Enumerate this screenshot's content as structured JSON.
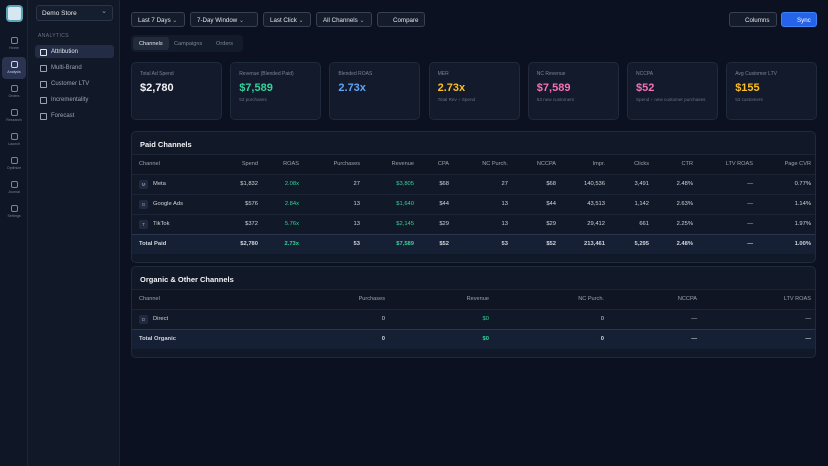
{
  "rail": [
    "Home",
    "Analysis",
    "Orders",
    "Research",
    "Launch",
    "Optimize",
    "Journal",
    "Settings"
  ],
  "sidebar": {
    "store": "Demo Store",
    "section": "ANALYTICS",
    "items": [
      "Attribution",
      "Multi-Brand",
      "Customer LTV",
      "Incrementality",
      "Forecast"
    ]
  },
  "toolbar": {
    "filters": [
      "Last 7 Days",
      "7-Day Window",
      "Last Click",
      "All Channels"
    ],
    "compare": "Compare",
    "columns": "Columns",
    "sync": "Sync"
  },
  "tabs": [
    "Channels",
    "Campaigns",
    "Orders"
  ],
  "kpis": [
    {
      "label": "Total Ad Spend",
      "value": "$2,780",
      "color": "#f3f4f6"
    },
    {
      "label": "Revenue (Blended Paid)",
      "value": "$7,589",
      "note": "53 purchases",
      "color": "#34d399"
    },
    {
      "label": "Blended ROAS",
      "value": "2.73x",
      "color": "#60a5fa"
    },
    {
      "label": "MER",
      "value": "2.73x",
      "note": "Total Rev ÷ Spend",
      "color": "#fbbf24"
    },
    {
      "label": "NC Revenue",
      "value": "$7,589",
      "note": "53 new customers",
      "color": "#f472b6"
    },
    {
      "label": "NCCPA",
      "value": "$52",
      "note": "Spend ÷ new customer purchases",
      "color": "#f472b6"
    },
    {
      "label": "Avg Customer LTV",
      "value": "$155",
      "note": "53 customers",
      "color": "#fbbf24"
    }
  ],
  "paid": {
    "title": "Paid Channels",
    "headers": [
      "Channel",
      "Spend",
      "ROAS",
      "Purchases",
      "Revenue",
      "CPA",
      "NC Purch.",
      "NCCPA",
      "Impr.",
      "Clicks",
      "CTR",
      "LTV ROAS",
      "Page CVR"
    ],
    "rows": [
      {
        "badge": "M",
        "cells": [
          "Meta",
          "$1,832",
          "2.08x",
          "27",
          "$3,805",
          "$68",
          "27",
          "$68",
          "140,536",
          "3,491",
          "2.48%",
          "—",
          "0.77%"
        ]
      },
      {
        "badge": "G",
        "cells": [
          "Google Ads",
          "$576",
          "2.84x",
          "13",
          "$1,640",
          "$44",
          "13",
          "$44",
          "43,513",
          "1,142",
          "2.63%",
          "—",
          "1.14%"
        ]
      },
      {
        "badge": "T",
        "cells": [
          "TikTok",
          "$372",
          "5.76x",
          "13",
          "$2,145",
          "$29",
          "13",
          "$29",
          "29,412",
          "661",
          "2.25%",
          "—",
          "1.97%"
        ]
      }
    ],
    "total": [
      "Total Paid",
      "$2,780",
      "2.73x",
      "53",
      "$7,589",
      "$52",
      "53",
      "$52",
      "213,461",
      "5,295",
      "2.48%",
      "—",
      "1.00%"
    ]
  },
  "organic": {
    "title": "Organic & Other Channels",
    "headers": [
      "Channel",
      "Purchases",
      "Revenue",
      "NC Purch.",
      "NCCPA",
      "LTV ROAS"
    ],
    "rows": [
      {
        "badge": "D",
        "cells": [
          "Direct",
          "0",
          "$0",
          "0",
          "—",
          "—"
        ]
      }
    ],
    "total": [
      "Total Organic",
      "0",
      "$0",
      "0",
      "—",
      "—"
    ]
  }
}
